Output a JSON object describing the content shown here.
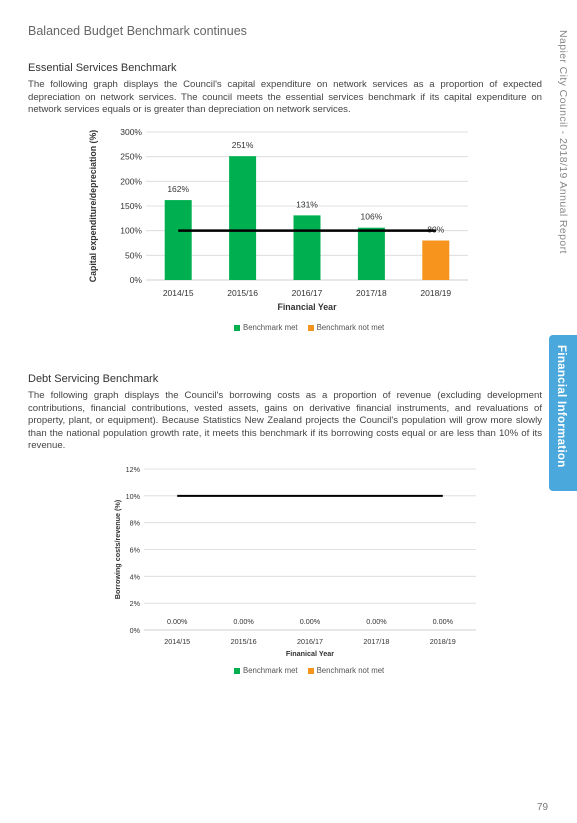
{
  "header": {
    "title": "Balanced Budget Benchmark continues"
  },
  "side": {
    "report_title": "Napier City Council - 2018/19 Annual Report",
    "tab": "Financial Information"
  },
  "section1": {
    "heading": "Essential Services Benchmark",
    "paragraph": "The following graph displays the Council's capital expenditure on network services as a proportion of expected depreciation on network services. The council meets the essential services benchmark if its capital expenditure on network services equals or is greater than depreciation on network services."
  },
  "section2": {
    "heading": "Debt Servicing Benchmark",
    "paragraph": "The following graph displays the Council's borrowing costs as a proportion of revenue (excluding development contributions, financial contributions, vested assets, gains on derivative financial instruments, and revaluations of property, plant, or equipment). Because Statistics New Zealand projects the Council's population will grow more slowly than the national population growth rate, it meets this benchmark if its borrowing costs equal or are less than 10% of its revenue."
  },
  "colors": {
    "met": "#00b050",
    "not_met": "#f7941d",
    "benchmark_line": "#000000"
  },
  "legend": {
    "met": "Benchmark met",
    "not_met": "Benchmark not met"
  },
  "page_number": "79",
  "chart_data": [
    {
      "type": "bar",
      "categories": [
        "2014/15",
        "2015/16",
        "2016/17",
        "2017/18",
        "2018/19"
      ],
      "values": [
        162,
        251,
        131,
        106,
        80
      ],
      "value_labels": [
        "162%",
        "251%",
        "131%",
        "106%",
        "80%"
      ],
      "status": [
        "met",
        "met",
        "met",
        "met",
        "not_met"
      ],
      "benchmark": 100,
      "ylim": [
        0,
        300
      ],
      "yticks": [
        "0%",
        "50%",
        "100%",
        "150%",
        "200%",
        "250%",
        "300%"
      ],
      "xlabel": "Financial Year",
      "ylabel": "Capital expenditure/depreciation (%)",
      "grid": true,
      "legend_position": "bottom"
    },
    {
      "type": "bar",
      "categories": [
        "2014/15",
        "2015/16",
        "2016/17",
        "2017/18",
        "2018/19"
      ],
      "values": [
        0,
        0,
        0,
        0,
        0
      ],
      "value_labels": [
        "0.00%",
        "0.00%",
        "0.00%",
        "0.00%",
        "0.00%"
      ],
      "status": [
        "met",
        "met",
        "met",
        "met",
        "met"
      ],
      "benchmark": 10,
      "ylim": [
        0,
        12
      ],
      "yticks": [
        "0%",
        "2%",
        "4%",
        "6%",
        "8%",
        "10%",
        "12%"
      ],
      "xlabel": "Finanical Year",
      "ylabel": "Borrowing costs/revenue (%)",
      "grid": true,
      "legend_position": "bottom"
    }
  ]
}
